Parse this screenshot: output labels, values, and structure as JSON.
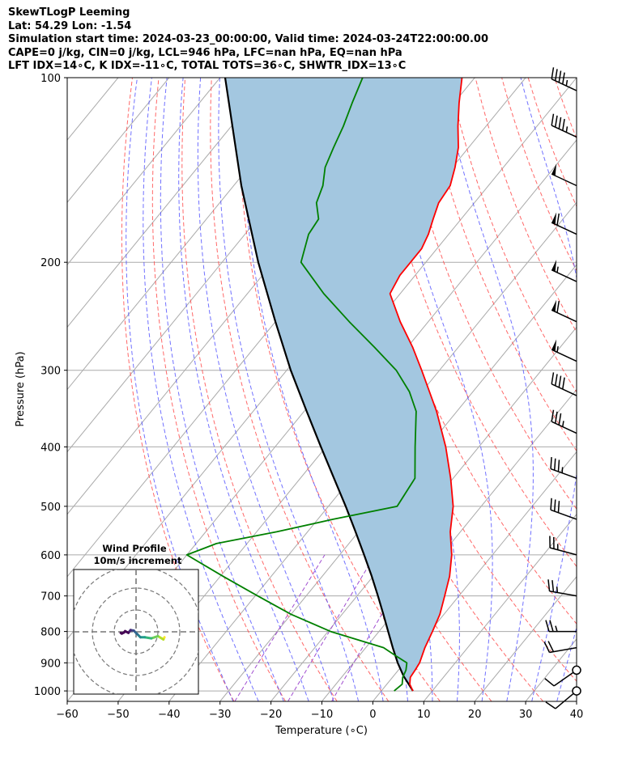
{
  "header": {
    "line1": "SkewTLogP Leeming",
    "line2": "Lat: 54.29   Lon: -1.54",
    "line3": "Simulation start time: 2024-03-23_00:00:00, Valid time: 2024-03-24T22:00:00.00",
    "line4": "CAPE=0 j/kg, CIN=0 j/kg, LCL=946 hPa, LFC=nan hPa, EQ=nan hPa",
    "line5": "LFT IDX=14∘C, K IDX=-11∘C, TOTAL TOTS=36∘C, SHWTR_IDX=13∘C"
  },
  "chart_data": {
    "type": "line",
    "title": "SkewTLogP Leeming",
    "xlabel": "Temperature (∘C)",
    "ylabel": "Pressure (hPa)",
    "xlim": [
      -60,
      40
    ],
    "ylim": [
      1040,
      100
    ],
    "y_scale": "log",
    "x_ticks": [
      -60,
      -50,
      -40,
      -30,
      -20,
      -10,
      0,
      10,
      20,
      30,
      40
    ],
    "x_tick_labels": [
      "−60",
      "−50",
      "−40",
      "−30",
      "−20",
      "−10",
      "0",
      "10",
      "20",
      "30",
      "40"
    ],
    "y_ticks": [
      1000,
      900,
      800,
      700,
      600,
      500,
      400,
      300,
      200,
      100
    ],
    "y_tick_labels": [
      "1000",
      "900",
      "800",
      "700",
      "600",
      "500",
      "400",
      "300",
      "200",
      "100"
    ],
    "grid": true,
    "colors": {
      "temperature": "#ff0000",
      "dewpoint": "#008000",
      "parcel": "#000000",
      "shade": "#a3c7e0",
      "dry_adiabat": "#ff4d4d",
      "moist_adiabat": "#4d4dff",
      "mixing_ratio": "#a04dd0",
      "isotherm": "#aaaaaa"
    },
    "series": [
      {
        "key": "temperature",
        "pressure": [
          1000,
          975,
          950,
          925,
          900,
          850,
          800,
          750,
          700,
          650,
          600,
          550,
          500,
          450,
          400,
          350,
          300,
          275,
          250,
          225,
          210,
          200,
          190,
          180,
          170,
          160,
          150,
          140,
          130,
          120,
          110,
          100
        ],
        "temp": [
          6.2,
          4.5,
          3.5,
          3.3,
          3.0,
          1.6,
          0.5,
          -0.8,
          -2.8,
          -5.0,
          -8.0,
          -12.0,
          -15.5,
          -20.5,
          -26.5,
          -34.0,
          -43.5,
          -49.0,
          -55.5,
          -62.0,
          -63.0,
          -63.0,
          -63.0,
          -64.0,
          -65.5,
          -67.0,
          -67.5,
          -69.5,
          -72.0,
          -75.5,
          -79.0,
          -82.5
        ]
      },
      {
        "key": "dewpoint",
        "pressure": [
          1000,
          975,
          950,
          925,
          900,
          875,
          850,
          800,
          750,
          700,
          650,
          600,
          575,
          550,
          525,
          500,
          450,
          400,
          350,
          325,
          300,
          275,
          250,
          225,
          200,
          180,
          170,
          160,
          150,
          140,
          130,
          120,
          110,
          100
        ],
        "temp": [
          2.5,
          3.0,
          2.0,
          1.5,
          0.5,
          -3.0,
          -6.5,
          -19.5,
          -30.0,
          -39.5,
          -49.5,
          -60.0,
          -56.0,
          -46.0,
          -37.0,
          -26.5,
          -27.5,
          -32.5,
          -38.0,
          -42.5,
          -48.5,
          -56.5,
          -65.5,
          -75.0,
          -84.5,
          -87.5,
          -88.0,
          -91.0,
          -92.5,
          -95.0,
          -96.5,
          -98.0,
          -100.0,
          -102.0
        ]
      },
      {
        "key": "parcel",
        "pressure": [
          1000,
          946,
          900,
          850,
          800,
          750,
          700,
          650,
          600,
          550,
          500,
          450,
          400,
          350,
          300,
          250,
          200,
          150,
          100
        ],
        "temp": [
          6.2,
          2.0,
          -1.3,
          -4.7,
          -8.2,
          -11.9,
          -15.9,
          -20.3,
          -25.2,
          -30.6,
          -36.6,
          -43.4,
          -51.0,
          -59.5,
          -69.2,
          -80.0,
          -92.9,
          -108.5,
          -129.0
        ]
      }
    ],
    "wind_barbs": {
      "pressure": [
        1000,
        925,
        850,
        800,
        700,
        600,
        525,
        450,
        380,
        330,
        290,
        250,
        215,
        180,
        150,
        125,
        105
      ],
      "speed_kt": [
        10,
        10,
        20,
        25,
        25,
        25,
        30,
        35,
        35,
        40,
        55,
        60,
        55,
        60,
        50,
        45,
        45
      ],
      "direction_deg": [
        230,
        235,
        260,
        270,
        280,
        285,
        290,
        290,
        295,
        295,
        295,
        295,
        295,
        295,
        295,
        295,
        295
      ]
    },
    "hodograph": {
      "title": "Wind Profile",
      "subtitle": "10m/s increment",
      "u": [
        13,
        12.5,
        10,
        7,
        4,
        2,
        0.5,
        -1,
        -2.5,
        -3.5,
        -5,
        -5.5,
        -6.5,
        -7
      ],
      "v": [
        -2.5,
        -3.5,
        -2,
        -3,
        -2.5,
        -2.5,
        -1,
        0.5,
        0.8,
        -0.5,
        0.3,
        -0.3,
        -0.8,
        -0.5
      ]
    }
  }
}
